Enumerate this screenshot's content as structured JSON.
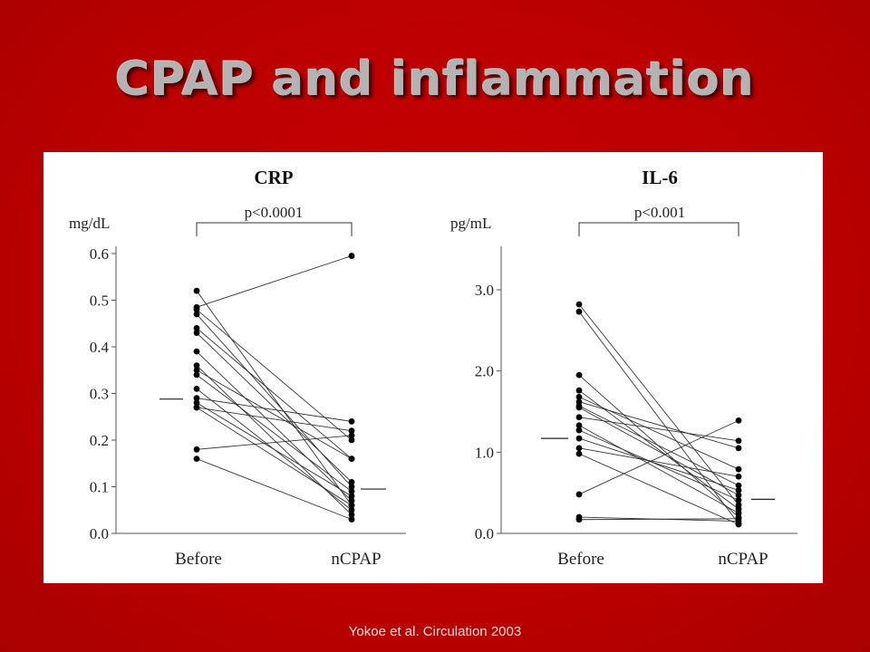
{
  "title": "CPAP and inflammation",
  "citation": "Yokoe et al.  Circulation 2003",
  "chart_data": [
    {
      "type": "line",
      "title": "CRP",
      "ylabel": "mg/dL",
      "categories": [
        "Before",
        "nCPAP"
      ],
      "yticks": [
        "0.0",
        "0.1",
        "0.2",
        "0.3",
        "0.4",
        "0.5",
        "0.6"
      ],
      "ylim": [
        0,
        0.6
      ],
      "pvalue": "p<0.0001",
      "mean": [
        0.288,
        0.095
      ],
      "pairs": [
        [
          0.52,
          0.06
        ],
        [
          0.485,
          0.595
        ],
        [
          0.48,
          0.2
        ],
        [
          0.47,
          0.1
        ],
        [
          0.44,
          0.16
        ],
        [
          0.43,
          0.11
        ],
        [
          0.39,
          0.07
        ],
        [
          0.36,
          0.04
        ],
        [
          0.35,
          0.16
        ],
        [
          0.34,
          0.09
        ],
        [
          0.31,
          0.05
        ],
        [
          0.29,
          0.24
        ],
        [
          0.28,
          0.08
        ],
        [
          0.27,
          0.22
        ],
        [
          0.27,
          0.06
        ],
        [
          0.18,
          0.21
        ],
        [
          0.16,
          0.03
        ]
      ]
    },
    {
      "type": "line",
      "title": "IL-6",
      "ylabel": "pg/mL",
      "categories": [
        "Before",
        "nCPAP"
      ],
      "yticks": [
        "0.0",
        "1.0",
        "2.0",
        "3.0"
      ],
      "ylim": [
        0,
        3.5
      ],
      "pvalue": "p<0.001",
      "mean": [
        1.17,
        0.42
      ],
      "pairs": [
        [
          2.82,
          0.35
        ],
        [
          2.73,
          0.12
        ],
        [
          1.95,
          0.2
        ],
        [
          1.76,
          0.3
        ],
        [
          1.68,
          0.79
        ],
        [
          1.62,
          1.05
        ],
        [
          1.57,
          0.59
        ],
        [
          1.55,
          0.47
        ],
        [
          1.43,
          1.14
        ],
        [
          1.33,
          0.25
        ],
        [
          1.27,
          0.41
        ],
        [
          1.17,
          0.53
        ],
        [
          1.05,
          0.7
        ],
        [
          0.98,
          0.11
        ],
        [
          0.48,
          1.39
        ],
        [
          0.2,
          0.15
        ],
        [
          0.17,
          0.18
        ]
      ]
    }
  ]
}
